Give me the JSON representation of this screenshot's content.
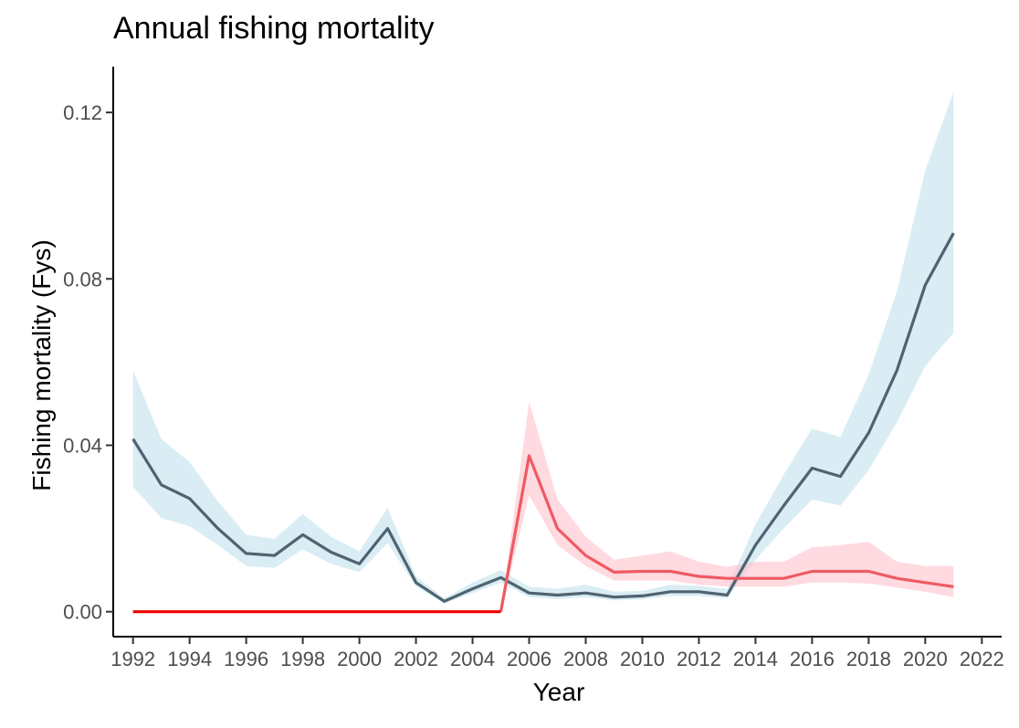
{
  "chart_data": {
    "type": "line",
    "title": "Annual fishing mortality",
    "xlabel": "Year",
    "ylabel": "Fishing mortality (Fys)",
    "xlim": [
      1991.3,
      2022.7
    ],
    "ylim": [
      -0.006,
      0.131
    ],
    "xticks": [
      1992,
      1994,
      1996,
      1998,
      2000,
      2002,
      2004,
      2006,
      2008,
      2010,
      2012,
      2014,
      2016,
      2018,
      2020,
      2022
    ],
    "yticks": [
      0.0,
      0.04,
      0.08,
      0.12
    ],
    "ytick_labels": [
      "0.00",
      "0.04",
      "0.08",
      "0.12"
    ],
    "grid": false,
    "legend": "none",
    "series": [
      {
        "color": "#4f6370",
        "band_color": "#add8e6",
        "band_opacity": 0.45,
        "x": [
          1992,
          1993,
          1994,
          1995,
          1996,
          1997,
          1998,
          1999,
          2000,
          2001,
          2002,
          2003,
          2004,
          2005,
          2006,
          2007,
          2008,
          2009,
          2010,
          2011,
          2012,
          2013,
          2014,
          2015,
          2016,
          2017,
          2018,
          2019,
          2020,
          2021
        ],
        "values": [
          0.0415,
          0.0305,
          0.0272,
          0.02,
          0.014,
          0.0135,
          0.0185,
          0.0143,
          0.0115,
          0.02,
          0.007,
          0.0025,
          0.0055,
          0.0082,
          0.0045,
          0.004,
          0.0045,
          0.0035,
          0.0038,
          0.0048,
          0.0048,
          0.004,
          0.016,
          0.0255,
          0.0345,
          0.0325,
          0.043,
          0.058,
          0.0785,
          0.091
        ],
        "lower": [
          0.03,
          0.0225,
          0.0205,
          0.016,
          0.011,
          0.0105,
          0.015,
          0.0115,
          0.0095,
          0.0165,
          0.006,
          0.002,
          0.0045,
          0.007,
          0.0035,
          0.003,
          0.0035,
          0.0027,
          0.003,
          0.0038,
          0.0038,
          0.0032,
          0.0125,
          0.02,
          0.027,
          0.0255,
          0.034,
          0.0455,
          0.059,
          0.067
        ],
        "upper": [
          0.058,
          0.0415,
          0.036,
          0.0265,
          0.0185,
          0.0175,
          0.0235,
          0.018,
          0.0145,
          0.025,
          0.0085,
          0.0032,
          0.007,
          0.01,
          0.006,
          0.0055,
          0.0065,
          0.0048,
          0.005,
          0.0065,
          0.0062,
          0.0055,
          0.021,
          0.033,
          0.044,
          0.042,
          0.057,
          0.077,
          0.106,
          0.125
        ]
      },
      {
        "color": "#ee5a63",
        "band_color": "#ffb6c1",
        "band_opacity": 0.5,
        "x": [
          2005,
          2006,
          2007,
          2008,
          2009,
          2010,
          2011,
          2012,
          2013,
          2014,
          2015,
          2016,
          2017,
          2018,
          2019,
          2020,
          2021
        ],
        "values": [
          0.0,
          0.0375,
          0.02,
          0.0135,
          0.0095,
          0.0097,
          0.0097,
          0.0085,
          0.008,
          0.008,
          0.008,
          0.0097,
          0.0097,
          0.0097,
          0.008,
          0.007,
          0.006
        ],
        "lower": [
          0.0,
          0.028,
          0.016,
          0.011,
          0.0075,
          0.0075,
          0.0075,
          0.0065,
          0.006,
          0.006,
          0.006,
          0.007,
          0.007,
          0.0068,
          0.0058,
          0.0048,
          0.0035
        ],
        "upper": [
          0.0,
          0.0505,
          0.027,
          0.018,
          0.0125,
          0.0135,
          0.0145,
          0.012,
          0.0108,
          0.012,
          0.012,
          0.0155,
          0.016,
          0.0168,
          0.012,
          0.011,
          0.011
        ]
      },
      {
        "color": "#ee0000",
        "x": [
          1992,
          2005
        ],
        "values": [
          0.0,
          0.0
        ]
      }
    ]
  }
}
